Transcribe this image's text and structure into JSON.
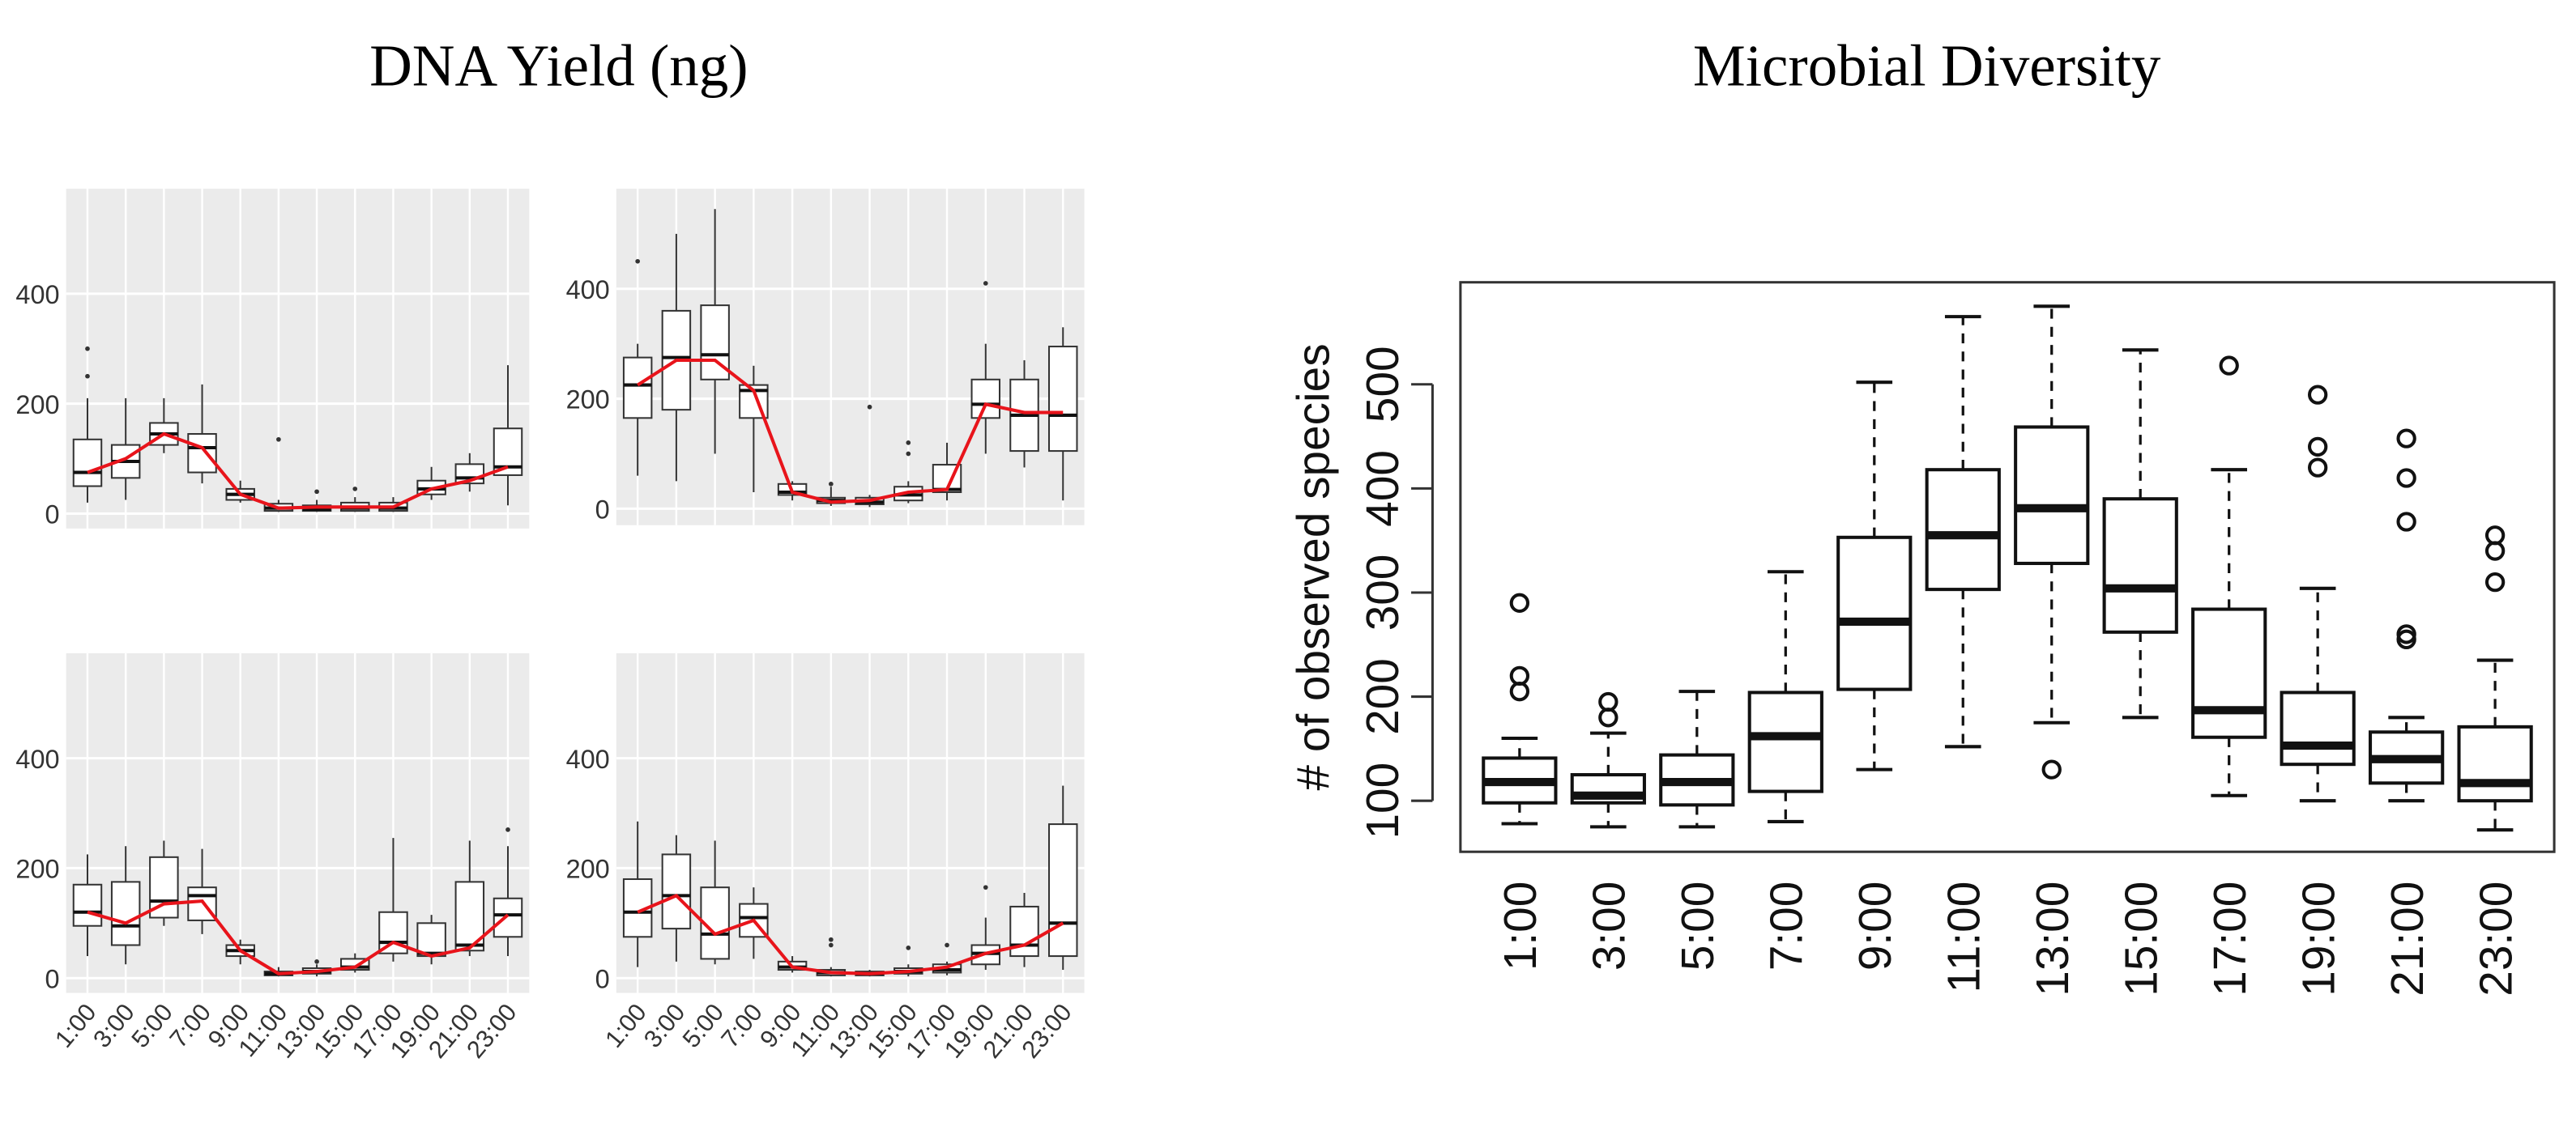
{
  "headings": [
    "DNA Yield (ng)",
    "Microbial Diversity"
  ],
  "chart_data": [
    {
      "type": "box",
      "ylim": [
        -27,
        591
      ],
      "yticks": [
        0,
        200,
        400
      ],
      "grid": true,
      "boxes": [
        {
          "low": 20,
          "q1": 50,
          "median": 75,
          "q3": 135,
          "high": 210,
          "outliers": [
            300,
            250
          ]
        },
        {
          "low": 25,
          "q1": 65,
          "median": 95,
          "q3": 125,
          "high": 210
        },
        {
          "low": 110,
          "q1": 125,
          "median": 145,
          "q3": 165,
          "high": 210
        },
        {
          "low": 55,
          "q1": 75,
          "median": 120,
          "q3": 145,
          "high": 235
        },
        {
          "low": 20,
          "q1": 25,
          "median": 35,
          "q3": 45,
          "high": 60
        },
        {
          "low": 3,
          "q1": 5,
          "median": 10,
          "q3": 18,
          "high": 25,
          "outliers": [
            135
          ]
        },
        {
          "low": 3,
          "q1": 5,
          "median": 8,
          "q3": 15,
          "high": 25,
          "outliers": [
            40
          ]
        },
        {
          "low": 3,
          "q1": 5,
          "median": 10,
          "q3": 20,
          "high": 30,
          "outliers": [
            45
          ]
        },
        {
          "low": 3,
          "q1": 5,
          "median": 10,
          "q3": 20,
          "high": 30
        },
        {
          "low": 25,
          "q1": 35,
          "median": 45,
          "q3": 60,
          "high": 85
        },
        {
          "low": 40,
          "q1": 55,
          "median": 65,
          "q3": 90,
          "high": 110
        },
        {
          "low": 15,
          "q1": 70,
          "median": 85,
          "q3": 155,
          "high": 270
        }
      ],
      "line": {
        "color": "#e8141b",
        "values": [
          75,
          100,
          145,
          120,
          35,
          10,
          12,
          12,
          12,
          45,
          60,
          85
        ]
      }
    },
    {
      "type": "box",
      "ylim": [
        -30,
        582
      ],
      "yticks": [
        0,
        200,
        400
      ],
      "grid": true,
      "boxes": [
        {
          "low": 60,
          "q1": 165,
          "median": 225,
          "q3": 275,
          "high": 300,
          "outliers": [
            450
          ]
        },
        {
          "low": 50,
          "q1": 180,
          "median": 275,
          "q3": 360,
          "high": 500
        },
        {
          "low": 100,
          "q1": 235,
          "median": 280,
          "q3": 370,
          "high": 545
        },
        {
          "low": 30,
          "q1": 165,
          "median": 215,
          "q3": 225,
          "high": 260
        },
        {
          "low": 15,
          "q1": 25,
          "median": 30,
          "q3": 45,
          "high": 50
        },
        {
          "low": 5,
          "q1": 10,
          "median": 15,
          "q3": 20,
          "high": 40,
          "outliers": [
            45
          ]
        },
        {
          "low": 3,
          "q1": 8,
          "median": 12,
          "q3": 20,
          "high": 25,
          "outliers": [
            185
          ]
        },
        {
          "low": 10,
          "q1": 15,
          "median": 25,
          "q3": 40,
          "high": 50,
          "outliers": [
            100,
            120
          ]
        },
        {
          "low": 15,
          "q1": 30,
          "median": 35,
          "q3": 80,
          "high": 120
        },
        {
          "low": 100,
          "q1": 165,
          "median": 190,
          "q3": 235,
          "high": 300,
          "outliers": [
            410
          ]
        },
        {
          "low": 75,
          "q1": 105,
          "median": 170,
          "q3": 235,
          "high": 270
        },
        {
          "low": 15,
          "q1": 105,
          "median": 170,
          "q3": 295,
          "high": 330
        }
      ],
      "line": {
        "color": "#e8141b",
        "values": [
          225,
          270,
          270,
          215,
          30,
          12,
          15,
          30,
          35,
          190,
          175,
          175
        ]
      }
    },
    {
      "type": "box",
      "ylim": [
        -27,
        591
      ],
      "yticks": [
        0,
        200,
        400
      ],
      "grid": true,
      "categories": [
        "1:00",
        "3:00",
        "5:00",
        "7:00",
        "9:00",
        "11:00",
        "13:00",
        "15:00",
        "17:00",
        "19:00",
        "21:00",
        "23:00"
      ],
      "boxes": [
        {
          "low": 40,
          "q1": 95,
          "median": 120,
          "q3": 170,
          "high": 225
        },
        {
          "low": 25,
          "q1": 60,
          "median": 95,
          "q3": 175,
          "high": 240
        },
        {
          "low": 95,
          "q1": 110,
          "median": 140,
          "q3": 220,
          "high": 250
        },
        {
          "low": 80,
          "q1": 105,
          "median": 150,
          "q3": 165,
          "high": 235
        },
        {
          "low": 25,
          "q1": 40,
          "median": 50,
          "q3": 60,
          "high": 70
        },
        {
          "low": 3,
          "q1": 5,
          "median": 8,
          "q3": 12,
          "high": 20
        },
        {
          "low": 3,
          "q1": 8,
          "median": 12,
          "q3": 18,
          "high": 25,
          "outliers": [
            30
          ]
        },
        {
          "low": 10,
          "q1": 15,
          "median": 20,
          "q3": 35,
          "high": 45
        },
        {
          "low": 30,
          "q1": 45,
          "median": 65,
          "q3": 120,
          "high": 255
        },
        {
          "low": 25,
          "q1": 40,
          "median": 45,
          "q3": 100,
          "high": 115
        },
        {
          "low": 40,
          "q1": 50,
          "median": 60,
          "q3": 175,
          "high": 250
        },
        {
          "low": 40,
          "q1": 75,
          "median": 115,
          "q3": 145,
          "high": 240,
          "outliers": [
            270
          ]
        }
      ],
      "line": {
        "color": "#e8141b",
        "values": [
          120,
          100,
          135,
          140,
          50,
          8,
          12,
          20,
          65,
          40,
          55,
          115
        ]
      }
    },
    {
      "type": "box",
      "ylim": [
        -27,
        591
      ],
      "yticks": [
        0,
        200,
        400
      ],
      "grid": true,
      "categories": [
        "1:00",
        "3:00",
        "5:00",
        "7:00",
        "9:00",
        "11:00",
        "13:00",
        "15:00",
        "17:00",
        "19:00",
        "21:00",
        "23:00"
      ],
      "boxes": [
        {
          "low": 20,
          "q1": 75,
          "median": 120,
          "q3": 180,
          "high": 285
        },
        {
          "low": 30,
          "q1": 90,
          "median": 150,
          "q3": 225,
          "high": 260
        },
        {
          "low": 25,
          "q1": 35,
          "median": 80,
          "q3": 165,
          "high": 250
        },
        {
          "low": 35,
          "q1": 75,
          "median": 110,
          "q3": 135,
          "high": 165
        },
        {
          "low": 10,
          "q1": 15,
          "median": 20,
          "q3": 30,
          "high": 40
        },
        {
          "low": 3,
          "q1": 5,
          "median": 10,
          "q3": 15,
          "high": 20,
          "outliers": [
            70,
            60
          ]
        },
        {
          "low": 3,
          "q1": 5,
          "median": 8,
          "q3": 12,
          "high": 15
        },
        {
          "low": 3,
          "q1": 8,
          "median": 12,
          "q3": 18,
          "high": 25,
          "outliers": [
            55
          ]
        },
        {
          "low": 5,
          "q1": 10,
          "median": 15,
          "q3": 25,
          "high": 30,
          "outliers": [
            60
          ]
        },
        {
          "low": 15,
          "q1": 25,
          "median": 45,
          "q3": 60,
          "high": 110,
          "outliers": [
            165
          ]
        },
        {
          "low": 20,
          "q1": 40,
          "median": 60,
          "q3": 130,
          "high": 155
        },
        {
          "low": 15,
          "q1": 40,
          "median": 100,
          "q3": 280,
          "high": 350
        }
      ],
      "line": {
        "color": "#e8141b",
        "values": [
          120,
          150,
          80,
          105,
          20,
          10,
          8,
          12,
          20,
          45,
          60,
          100
        ]
      }
    },
    {
      "type": "box",
      "ylabel": "# of observed species",
      "ylim": [
        51,
        598
      ],
      "yticks": [
        100,
        200,
        300,
        400,
        500
      ],
      "grid": false,
      "categories": [
        "1:00",
        "3:00",
        "5:00",
        "7:00",
        "9:00",
        "11:00",
        "13:00",
        "15:00",
        "17:00",
        "19:00",
        "21:00",
        "23:00"
      ],
      "boxes": [
        {
          "low": 78,
          "q1": 98,
          "median": 118,
          "q3": 141,
          "high": 160,
          "outliers": [
            290,
            220,
            205
          ]
        },
        {
          "low": 75,
          "q1": 98,
          "median": 105,
          "q3": 125,
          "high": 165,
          "outliers": [
            195,
            180
          ]
        },
        {
          "low": 75,
          "q1": 96,
          "median": 118,
          "q3": 144,
          "high": 205
        },
        {
          "low": 80,
          "q1": 109,
          "median": 162,
          "q3": 204,
          "high": 320
        },
        {
          "low": 130,
          "q1": 207,
          "median": 272,
          "q3": 353,
          "high": 502
        },
        {
          "low": 152,
          "q1": 303,
          "median": 355,
          "q3": 418,
          "high": 565
        },
        {
          "low": 175,
          "q1": 328,
          "median": 381,
          "q3": 459,
          "high": 575,
          "outliers": [
            130
          ]
        },
        {
          "low": 180,
          "q1": 262,
          "median": 304,
          "q3": 390,
          "high": 533
        },
        {
          "low": 105,
          "q1": 161,
          "median": 187,
          "q3": 284,
          "high": 418,
          "outliers": [
            518
          ]
        },
        {
          "low": 100,
          "q1": 135,
          "median": 153,
          "q3": 204,
          "high": 304,
          "outliers": [
            490,
            440,
            420
          ]
        },
        {
          "low": 100,
          "q1": 117,
          "median": 140,
          "q3": 166,
          "high": 180,
          "outliers": [
            448,
            410,
            368,
            260,
            255
          ]
        },
        {
          "low": 72,
          "q1": 100,
          "median": 117,
          "q3": 171,
          "high": 235,
          "outliers": [
            355,
            340,
            310
          ]
        }
      ]
    }
  ]
}
